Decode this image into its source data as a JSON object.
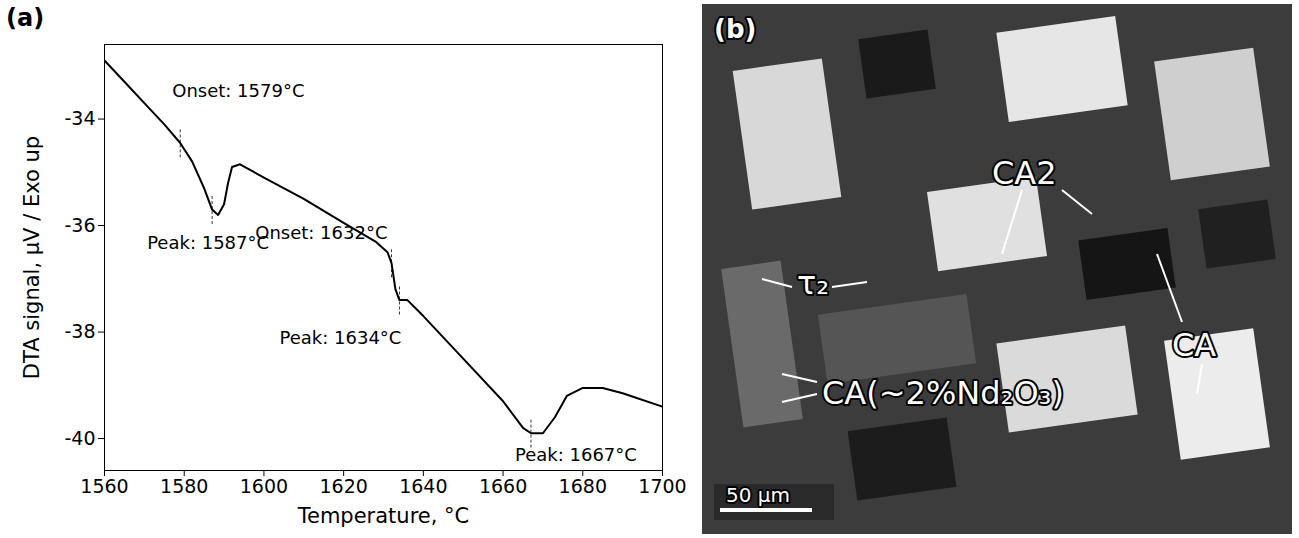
{
  "chart_data": {
    "type": "line",
    "panel": "(a)",
    "x_label": "Temperature, °C",
    "y_label": "DTA signal, µV / Exo up",
    "color": "#000000",
    "xlim": [
      1560,
      1700
    ],
    "ylim": [
      -40.6,
      -32.6
    ],
    "xticks": [
      1560,
      1580,
      1600,
      1620,
      1640,
      1660,
      1680,
      1700
    ],
    "yticks": [
      -40,
      -38,
      -36,
      -34
    ],
    "x": [
      1560,
      1565,
      1570,
      1575,
      1579,
      1582,
      1585,
      1587,
      1588.5,
      1590,
      1591,
      1592,
      1594,
      1600,
      1610,
      1620,
      1628,
      1631,
      1632,
      1633,
      1634,
      1636,
      1640,
      1650,
      1660,
      1665,
      1667,
      1670,
      1673,
      1676,
      1680,
      1685,
      1690,
      1700
    ],
    "values": [
      -32.9,
      -33.3,
      -33.7,
      -34.1,
      -34.45,
      -34.8,
      -35.3,
      -35.7,
      -35.8,
      -35.6,
      -35.2,
      -34.9,
      -34.85,
      -35.1,
      -35.5,
      -35.95,
      -36.3,
      -36.5,
      -36.7,
      -37.2,
      -37.4,
      -37.4,
      -37.7,
      -38.5,
      -39.3,
      -39.8,
      -39.9,
      -39.9,
      -39.6,
      -39.2,
      -39.05,
      -39.05,
      -39.15,
      -39.4
    ],
    "annotations": [
      {
        "text": "Onset: 1579°C",
        "x": 1579
      },
      {
        "text": "Peak: 1587°C",
        "x": 1587
      },
      {
        "text": "Onset: 1632°C",
        "x": 1632
      },
      {
        "text": "Peak: 1634°C",
        "x": 1634
      },
      {
        "text": "Peak: 1667°C",
        "x": 1667
      }
    ]
  },
  "micrograph": {
    "panel": "(b)",
    "labels": [
      "CA2",
      "τ₂",
      "CA",
      "CA(~2%Nd₂O₃)"
    ],
    "scale_bar": "50 µm"
  }
}
